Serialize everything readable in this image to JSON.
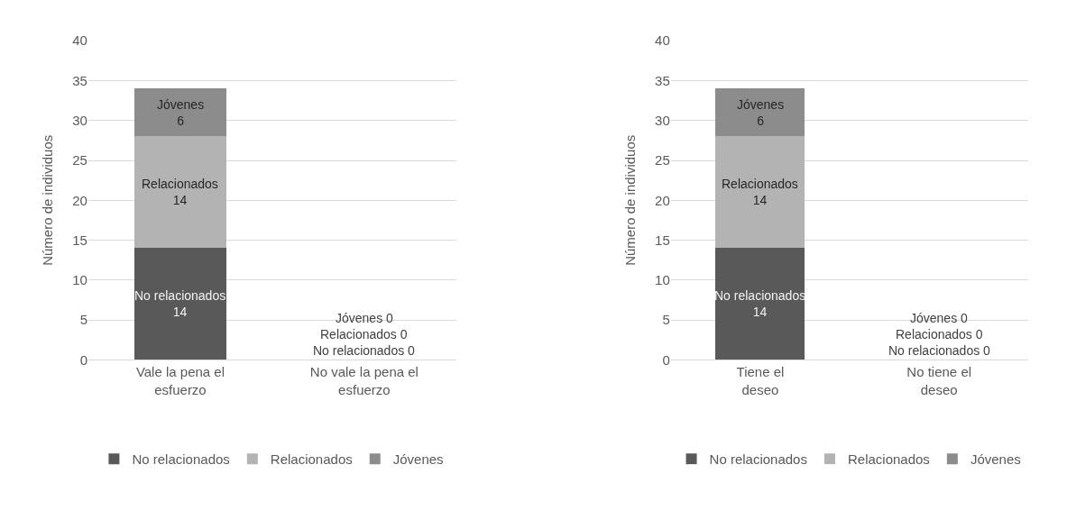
{
  "chart_data": [
    {
      "type": "bar",
      "stacked": true,
      "categories": [
        "Vale la pena el esfuerzo",
        "No vale la pena el esfuerzo"
      ],
      "ylabel": "Número de individuos",
      "ylim": [
        0,
        40
      ],
      "yticks": [
        0,
        5,
        10,
        15,
        20,
        25,
        30,
        35,
        40
      ],
      "grid": "y",
      "legend": "bottom",
      "series": [
        {
          "name": "No relacionados",
          "color": "#595959",
          "values": [
            14,
            0
          ],
          "value_labels": [
            "No relacionados 14",
            "No relacionados 0"
          ]
        },
        {
          "name": "Relacionados",
          "color": "#b3b3b3",
          "values": [
            14,
            0
          ],
          "value_labels": [
            "Relacionados 14",
            "Relacionados 0"
          ]
        },
        {
          "name": "Jóvenes",
          "color": "#8c8c8c",
          "values": [
            6,
            0
          ],
          "value_labels": [
            "Jóvenes 6",
            "Jóvenes 0"
          ]
        }
      ]
    },
    {
      "type": "bar",
      "stacked": true,
      "categories": [
        "Tiene el deseo",
        "No tiene el deseo"
      ],
      "ylabel": "Número de individuos",
      "ylim": [
        0,
        40
      ],
      "yticks": [
        0,
        5,
        10,
        15,
        20,
        25,
        30,
        35,
        40
      ],
      "grid": "y",
      "legend": "bottom",
      "series": [
        {
          "name": "No relacionados",
          "color": "#595959",
          "values": [
            14,
            0
          ],
          "value_labels": [
            "No relacionados 14",
            "No relacionados 0"
          ]
        },
        {
          "name": "Relacionados",
          "color": "#b3b3b3",
          "values": [
            14,
            0
          ],
          "value_labels": [
            "Relacionados 14",
            "Relacionados 0"
          ]
        },
        {
          "name": "Jóvenes",
          "color": "#8c8c8c",
          "values": [
            6,
            0
          ],
          "value_labels": [
            "Jóvenes 6",
            "Jóvenes 0"
          ]
        }
      ]
    }
  ]
}
